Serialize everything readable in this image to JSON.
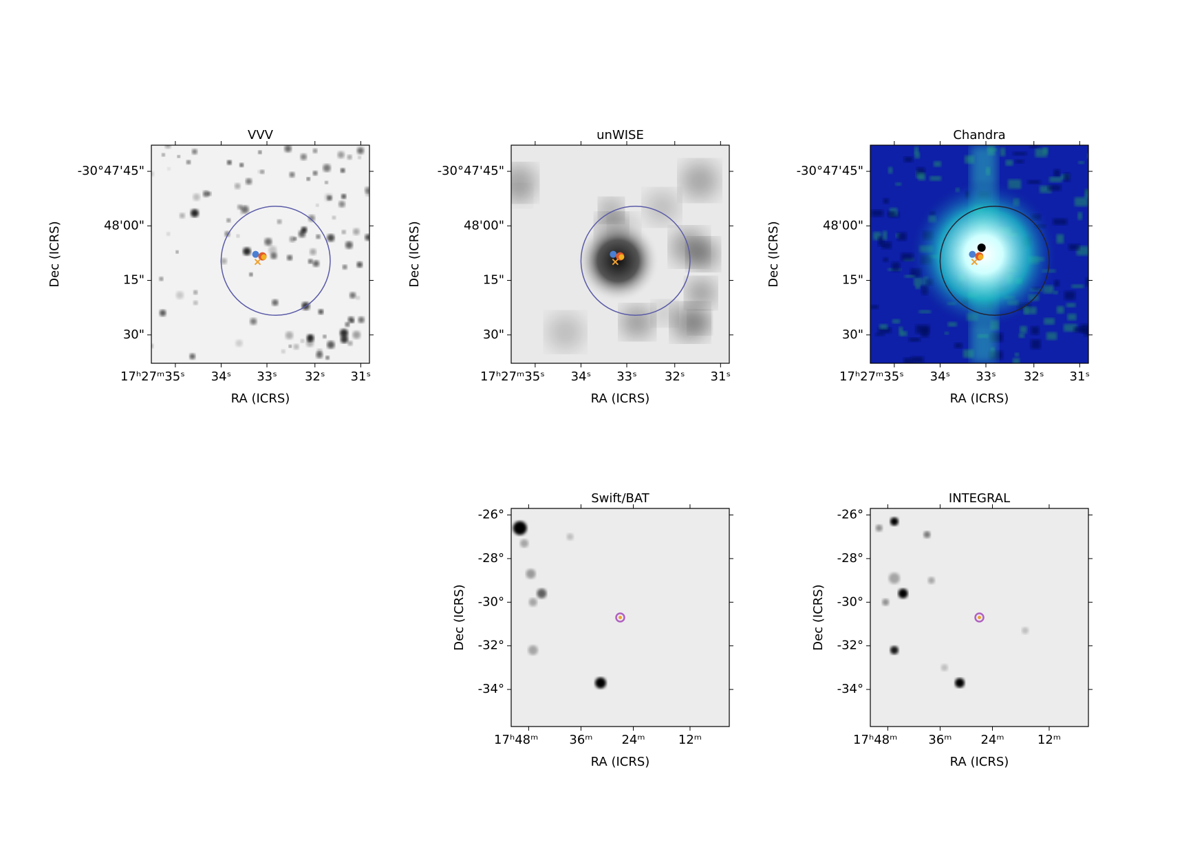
{
  "panels": [
    {
      "title": "VVV",
      "xlabel": "RA (ICRS)",
      "ylabel": "Dec (ICRS)",
      "xticks": [
        "17ʰ27ᵐ35ˢ",
        "34ˢ",
        "33ˢ",
        "32ˢ",
        "31ˢ"
      ],
      "yticks": [
        "-30°47'45\"",
        "48'00\"",
        "15\"",
        "30\""
      ]
    },
    {
      "title": "unWISE",
      "xlabel": "RA (ICRS)",
      "ylabel": "Dec (ICRS)",
      "xticks": [
        "17ʰ27ᵐ35ˢ",
        "34ˢ",
        "33ˢ",
        "32ˢ",
        "31ˢ"
      ],
      "yticks": [
        "-30°47'45\"",
        "48'00\"",
        "15\"",
        "30\""
      ]
    },
    {
      "title": "Chandra",
      "xlabel": "RA (ICRS)",
      "ylabel": "Dec (ICRS)",
      "xticks": [
        "17ʰ27ᵐ35ˢ",
        "34ˢ",
        "33ˢ",
        "32ˢ",
        "31ˢ"
      ],
      "yticks": [
        "-30°47'45\"",
        "48'00\"",
        "15\"",
        "30\""
      ]
    },
    {
      "title": "Swift/BAT",
      "xlabel": "RA (ICRS)",
      "ylabel": "Dec (ICRS)",
      "xticks": [
        "17ʰ48ᵐ",
        "36ᵐ",
        "24ᵐ",
        "12ᵐ"
      ],
      "yticks": [
        "-26°",
        "-28°",
        "-30°",
        "-32°",
        "-34°"
      ]
    },
    {
      "title": "INTEGRAL",
      "xlabel": "RA (ICRS)",
      "ylabel": "Dec (ICRS)",
      "xticks": [
        "17ʰ48ᵐ",
        "36ᵐ",
        "24ᵐ",
        "12ᵐ"
      ],
      "yticks": [
        "-26°",
        "-28°",
        "-30°",
        "-32°",
        "-34°"
      ]
    }
  ]
}
